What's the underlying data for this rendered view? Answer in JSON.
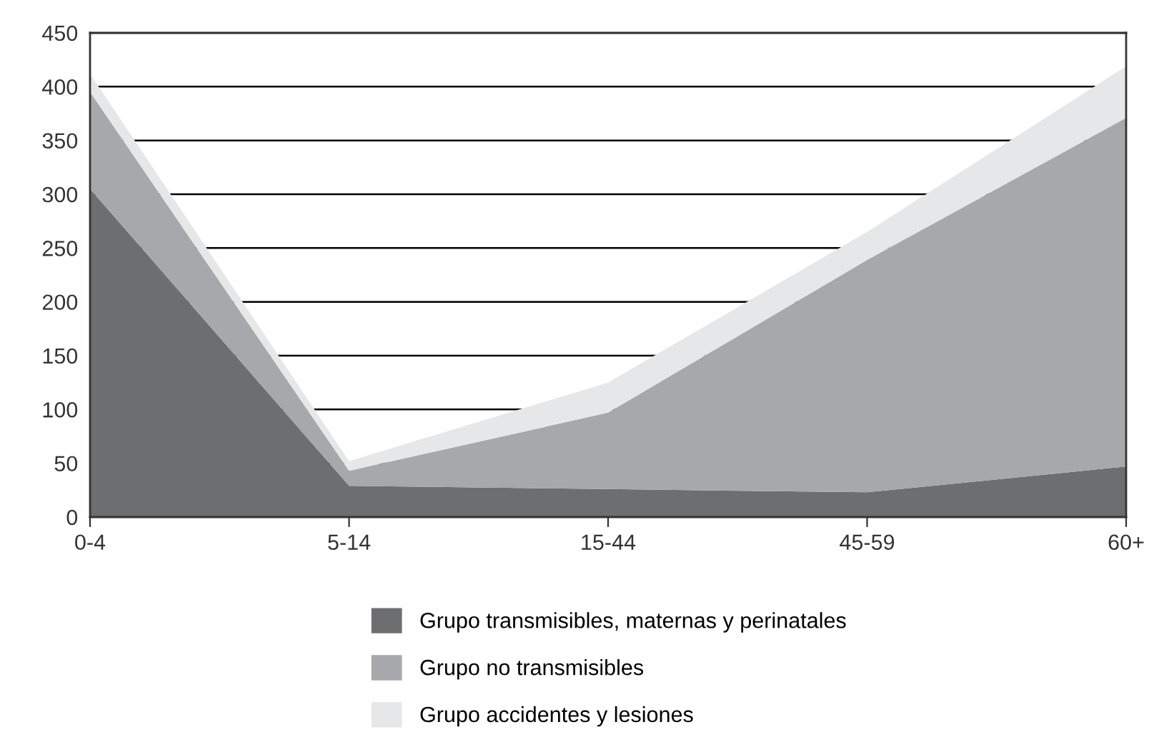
{
  "chart_data": {
    "type": "area",
    "stacked": true,
    "categories": [
      "0-4",
      "5-14",
      "15-44",
      "45-59",
      "60+"
    ],
    "series": [
      {
        "name": "Grupo transmisibles, maternas y perinatales",
        "color": "#6d6e70",
        "values": [
          305,
          29,
          26,
          23,
          47
        ]
      },
      {
        "name": "Grupo no transmisibles",
        "color": "#a7a8ab",
        "values": [
          90,
          14,
          71,
          216,
          324
        ]
      },
      {
        "name": "Grupo accidentes y lesiones",
        "color": "#e6e7e8",
        "values": [
          17,
          9,
          28,
          26,
          48
        ]
      }
    ],
    "ylim": [
      0,
      450
    ],
    "yticks": [
      0,
      50,
      100,
      150,
      200,
      250,
      300,
      350,
      400,
      450
    ],
    "grid": "y",
    "legend": "bottom"
  }
}
